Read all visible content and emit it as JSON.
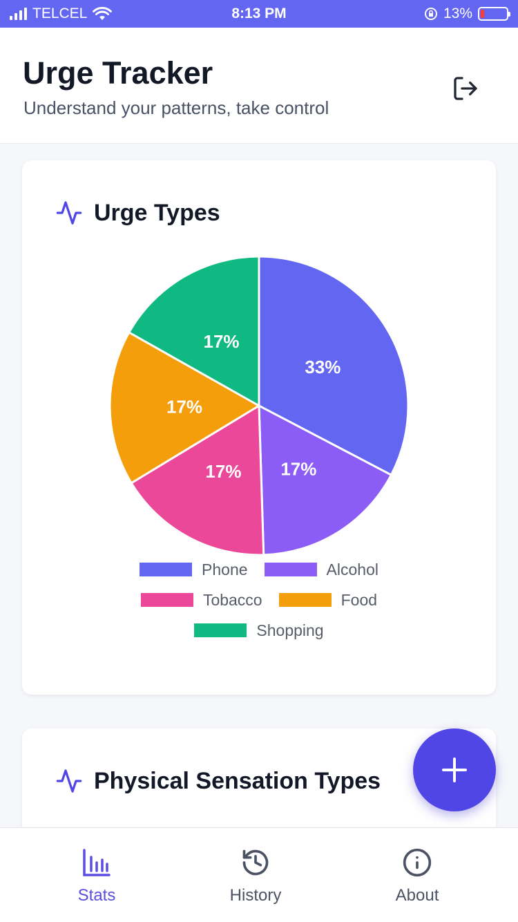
{
  "status_bar": {
    "carrier": "TELCEL",
    "time": "8:13 PM",
    "battery_percent": "13%",
    "battery_level": 0.13
  },
  "header": {
    "title": "Urge Tracker",
    "subtitle": "Understand your patterns, take control",
    "logout_icon": "logout-icon"
  },
  "cards": {
    "urge_types_title": "Urge Types",
    "physical_sensation_title": "Physical Sensation Types",
    "title_icon": "pulse-icon"
  },
  "chart_data": {
    "type": "pie",
    "title": "Urge Types",
    "legend_position": "bottom",
    "slices": [
      {
        "label": "Phone",
        "value": 33,
        "display": "33%",
        "color": "#6366f1"
      },
      {
        "label": "Alcohol",
        "value": 17,
        "display": "17%",
        "color": "#8b5cf6"
      },
      {
        "label": "Tobacco",
        "value": 17,
        "display": "17%",
        "color": "#ec4899"
      },
      {
        "label": "Food",
        "value": 17,
        "display": "17%",
        "color": "#f59e0b"
      },
      {
        "label": "Shopping",
        "value": 17,
        "display": "17%",
        "color": "#10b981"
      }
    ]
  },
  "fab": {
    "icon": "plus-icon"
  },
  "tabs": [
    {
      "label": "Stats",
      "icon": "bar-chart-icon",
      "active": true
    },
    {
      "label": "History",
      "icon": "history-icon",
      "active": false
    },
    {
      "label": "About",
      "icon": "info-icon",
      "active": false
    }
  ],
  "colors": {
    "accent": "#6366f1",
    "fab": "#4f46e5",
    "active_tab": "#5b4de0"
  }
}
